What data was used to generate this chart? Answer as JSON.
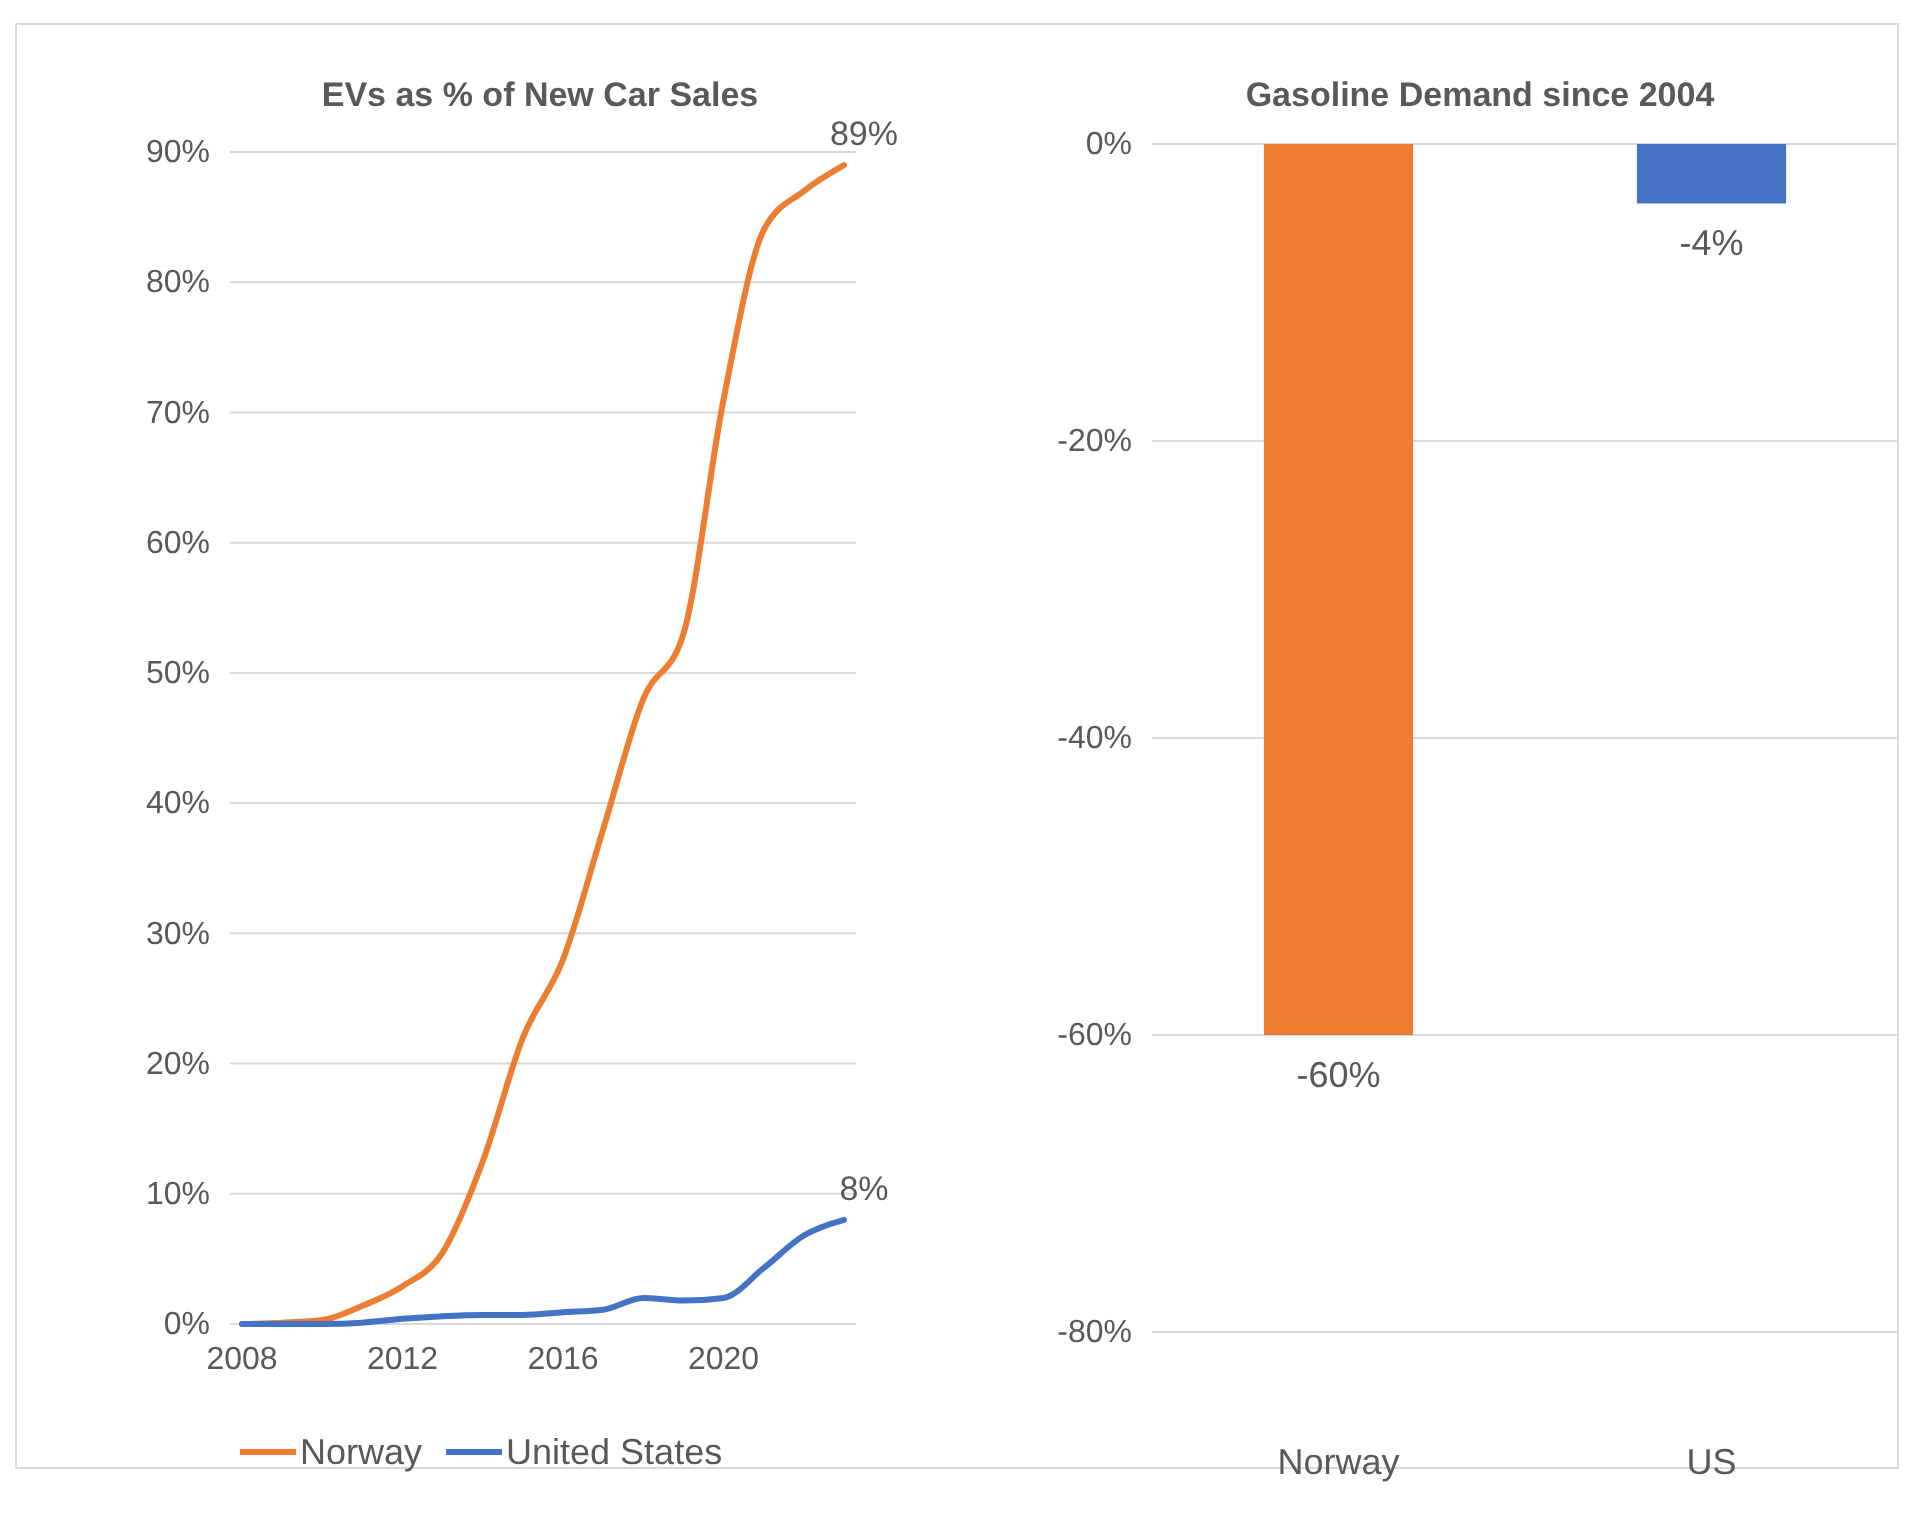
{
  "chart_data": [
    {
      "type": "line",
      "title": "EVs as % of New Car Sales",
      "x": [
        2008,
        2009,
        2010,
        2011,
        2012,
        2013,
        2014,
        2015,
        2016,
        2017,
        2018,
        2019,
        2020,
        2021,
        2022,
        2023
      ],
      "series": [
        {
          "name": "Norway",
          "color": "#ed7d31",
          "values": [
            0,
            0.1,
            0.3,
            1.4,
            2.9,
            5.5,
            12.5,
            22,
            28,
            38,
            48,
            53,
            71,
            84,
            87,
            89
          ],
          "value_labels": [
            null,
            null,
            null,
            null,
            null,
            null,
            null,
            null,
            null,
            null,
            null,
            null,
            null,
            null,
            null,
            "89%"
          ]
        },
        {
          "name": "United States",
          "color": "#4472c4",
          "values": [
            0,
            0,
            0,
            0.1,
            0.4,
            0.6,
            0.7,
            0.7,
            0.9,
            1.1,
            2,
            1.8,
            2,
            4.3,
            6.8,
            8
          ],
          "value_labels": [
            null,
            null,
            null,
            null,
            null,
            null,
            null,
            null,
            null,
            null,
            null,
            null,
            null,
            null,
            null,
            "8%"
          ]
        }
      ],
      "xlim": [
        2007.7,
        2023.3
      ],
      "xticks": [
        2008,
        2012,
        2016,
        2020
      ],
      "ylim": [
        0,
        90
      ],
      "yticks": [
        {
          "value": 0,
          "label": "0%"
        },
        {
          "value": 10,
          "label": "10%"
        },
        {
          "value": 20,
          "label": "20%"
        },
        {
          "value": 30,
          "label": "30%"
        },
        {
          "value": 40,
          "label": "40%"
        },
        {
          "value": 50,
          "label": "50%"
        },
        {
          "value": 60,
          "label": "60%"
        },
        {
          "value": 70,
          "label": "70%"
        },
        {
          "value": 80,
          "label": "80%"
        },
        {
          "value": 90,
          "label": "90%"
        }
      ],
      "grid": "y",
      "legend": "bottom",
      "line_style": "solid"
    },
    {
      "type": "bar",
      "title": "Gasoline Demand since 2004",
      "categories": [
        "Norway",
        "US"
      ],
      "values": [
        -60,
        -4
      ],
      "colors": [
        "#ed7d31",
        "#4472c4"
      ],
      "value_labels": [
        "-60%",
        "-4%"
      ],
      "ylim": [
        -80,
        0
      ],
      "yticks": [
        {
          "value": 0,
          "label": "0%"
        },
        {
          "value": -20,
          "label": "-20%"
        },
        {
          "value": -40,
          "label": "-40%"
        },
        {
          "value": -60,
          "label": "-60%"
        },
        {
          "value": -80,
          "label": "-80%"
        }
      ],
      "grid": "y"
    }
  ]
}
